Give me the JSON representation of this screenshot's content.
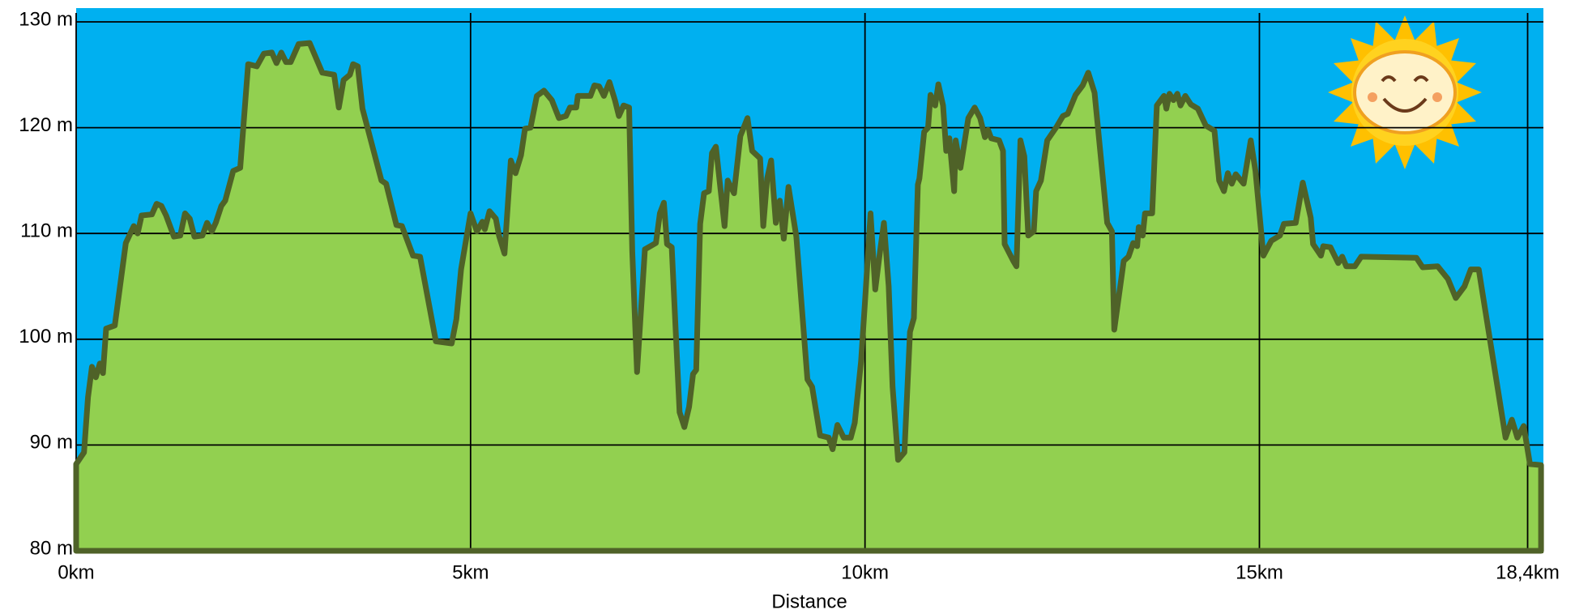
{
  "chart_data": {
    "type": "area",
    "x_label": "Distance",
    "x": [
      0,
      0.1,
      0.15,
      0.2,
      0.25,
      0.3,
      0.34,
      0.38,
      0.49,
      0.63,
      0.73,
      0.78,
      0.83,
      0.96,
      1.02,
      1.08,
      1.14,
      1.24,
      1.32,
      1.38,
      1.44,
      1.5,
      1.6,
      1.66,
      1.72,
      1.77,
      1.84,
      1.89,
      1.99,
      2.08,
      2.18,
      2.29,
      2.38,
      2.48,
      2.54,
      2.6,
      2.66,
      2.72,
      2.82,
      2.96,
      3.12,
      3.27,
      3.33,
      3.39,
      3.47,
      3.51,
      3.57,
      3.63,
      3.87,
      3.93,
      4.06,
      4.13,
      4.27,
      4.36,
      4.56,
      4.76,
      4.82,
      4.88,
      5.0,
      5.08,
      5.15,
      5.18,
      5.24,
      5.32,
      5.36,
      5.43,
      5.51,
      5.57,
      5.64,
      5.69,
      5.76,
      5.84,
      5.93,
      6.03,
      6.12,
      6.21,
      6.26,
      6.34,
      6.36,
      6.52,
      6.57,
      6.63,
      6.69,
      6.76,
      6.83,
      6.88,
      6.94,
      7.01,
      7.05,
      7.11,
      7.21,
      7.35,
      7.4,
      7.45,
      7.49,
      7.55,
      7.65,
      7.71,
      7.77,
      7.82,
      7.86,
      7.91,
      7.96,
      8.02,
      8.06,
      8.11,
      8.22,
      8.26,
      8.34,
      8.42,
      8.51,
      8.57,
      8.67,
      8.71,
      8.76,
      8.81,
      8.87,
      8.92,
      8.97,
      9.03,
      9.13,
      9.27,
      9.33,
      9.43,
      9.54,
      9.59,
      9.65,
      9.73,
      9.82,
      9.87,
      9.95,
      10.0,
      10.07,
      10.13,
      10.19,
      10.24,
      10.3,
      10.35,
      10.42,
      10.5,
      10.57,
      10.62,
      10.67,
      10.69,
      10.75,
      10.8,
      10.83,
      10.89,
      10.93,
      10.99,
      11.03,
      11.07,
      11.13,
      11.15,
      11.21,
      11.31,
      11.39,
      11.46,
      11.52,
      11.56,
      11.6,
      11.7,
      11.75,
      11.77,
      11.88,
      11.92,
      11.97,
      12.02,
      12.07,
      12.14,
      12.17,
      12.23,
      12.31,
      12.43,
      12.51,
      12.57,
      12.67,
      12.76,
      12.83,
      12.91,
      13.07,
      13.13,
      13.16,
      13.28,
      13.34,
      13.4,
      13.45,
      13.47,
      13.52,
      13.55,
      13.64,
      13.7,
      13.79,
      13.82,
      13.86,
      13.91,
      13.96,
      14.0,
      14.06,
      14.13,
      14.22,
      14.32,
      14.43,
      14.49,
      14.55,
      14.6,
      14.65,
      14.7,
      14.8,
      14.89,
      14.95,
      15.05,
      15.15,
      15.26,
      15.31,
      15.46,
      15.55,
      15.65,
      15.68,
      15.78,
      15.81,
      15.9,
      16.0,
      16.05,
      16.1,
      16.21,
      16.29,
      16.99,
      17.07,
      17.26,
      17.39,
      17.49,
      17.6,
      17.68,
      17.78,
      18.12,
      18.2,
      18.27,
      18.35,
      18.43,
      18.57
    ],
    "values": [
      88.2,
      89.3,
      94.5,
      97.4,
      96.4,
      97.7,
      96.8,
      101,
      101.3,
      109.1,
      110.7,
      110,
      111.7,
      111.8,
      112.8,
      112.6,
      111.7,
      109.7,
      109.8,
      111.9,
      111.4,
      109.7,
      109.8,
      111,
      110.2,
      111,
      112.6,
      113.1,
      115.9,
      116.2,
      126,
      125.8,
      127,
      127.1,
      126.1,
      127.1,
      126.2,
      126.2,
      127.9,
      128,
      125.2,
      125,
      121.9,
      124.5,
      125,
      126,
      125.8,
      121.8,
      115,
      114.7,
      110.8,
      110.7,
      107.9,
      107.8,
      99.8,
      99.6,
      101.9,
      106.6,
      111.9,
      110.2,
      111.1,
      110.4,
      112.1,
      111.4,
      109.8,
      108.1,
      116.9,
      115.7,
      117.4,
      119.9,
      120,
      123,
      123.5,
      122.6,
      120.9,
      121.1,
      121.9,
      121.9,
      123,
      123,
      124,
      123.9,
      123,
      124.3,
      122.6,
      121.1,
      122.1,
      121.9,
      108.3,
      96.9,
      108.5,
      109.1,
      111.9,
      112.9,
      109,
      108.7,
      93.1,
      91.7,
      93.6,
      96.7,
      97.1,
      110.9,
      113.8,
      114,
      117.6,
      118.2,
      110.7,
      115,
      113.8,
      119.2,
      120.9,
      117.8,
      117.1,
      110.7,
      115.2,
      116.9,
      111,
      113.1,
      109.5,
      114.4,
      109.7,
      96.2,
      95.5,
      90.9,
      90.7,
      89.6,
      91.9,
      90.7,
      90.7,
      92.1,
      97.9,
      103.6,
      111.9,
      104.7,
      108.3,
      111,
      105,
      95.5,
      88.6,
      89.3,
      100.7,
      102,
      114.6,
      115.2,
      119.6,
      120,
      123.1,
      122.1,
      124.1,
      122.1,
      117.8,
      119,
      114,
      118.8,
      116.2,
      120.9,
      121.9,
      120.9,
      119.1,
      119.8,
      119,
      118.8,
      117.8,
      109,
      107.4,
      106.9,
      118.8,
      117.3,
      109.8,
      110.2,
      114,
      115,
      118.8,
      120.1,
      121.1,
      121.3,
      123.1,
      124,
      125.2,
      123.3,
      111,
      110.2,
      100.9,
      107.4,
      107.8,
      109.1,
      108.8,
      110.6,
      109.8,
      111.9,
      111.9,
      122.1,
      123,
      121.8,
      123.2,
      122.6,
      123.2,
      122.1,
      123,
      122.2,
      121.8,
      120.2,
      119.7,
      115,
      114,
      115.7,
      114.7,
      115.6,
      114.7,
      118.8,
      115.9,
      107.9,
      109.3,
      109.8,
      110.9,
      111,
      114.8,
      111.5,
      109,
      107.9,
      108.8,
      108.7,
      107.2,
      107.8,
      106.9,
      106.9,
      107.8,
      107.7,
      106.8,
      106.9,
      105.7,
      103.9,
      105,
      106.6,
      106.6,
      90.7,
      92.4,
      90.7,
      91.8,
      88.2,
      88.1
    ],
    "color": "#92d050",
    "line_color": "#4f6228",
    "background": "#00b0f0",
    "xlim": [
      0,
      18.6
    ],
    "xticks": [
      {
        "value": 0,
        "label": "0km"
      },
      {
        "value": 5,
        "label": "5km"
      },
      {
        "value": 10,
        "label": "10km"
      },
      {
        "value": 15,
        "label": "15km"
      },
      {
        "value": 18.4,
        "label": "18,4km"
      }
    ],
    "ylim": [
      80,
      130
    ],
    "yticks": [
      {
        "value": 80,
        "label": "80 m"
      },
      {
        "value": 90,
        "label": "90 m"
      },
      {
        "value": 100,
        "label": "100 m"
      },
      {
        "value": 110,
        "label": "110 m"
      },
      {
        "value": 120,
        "label": "120 m"
      },
      {
        "value": 130,
        "label": "130 m"
      }
    ],
    "grid": true
  }
}
